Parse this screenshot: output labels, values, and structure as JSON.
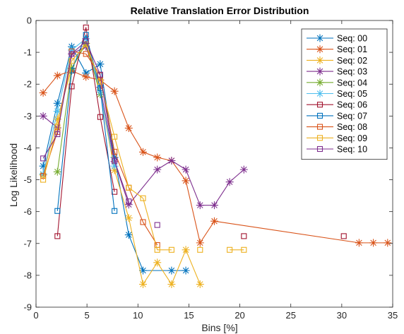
{
  "chart_data": {
    "type": "line",
    "title": "Relative Translation Error Distribution",
    "xlabel": "Bins [%]",
    "ylabel": "Log Likelihood",
    "xlim": [
      0,
      35
    ],
    "ylim": [
      -9,
      0
    ],
    "xticks": [
      0,
      5,
      10,
      15,
      20,
      25,
      30,
      35
    ],
    "yticks": [
      0,
      -1,
      -2,
      -3,
      -4,
      -5,
      -6,
      -7,
      -8,
      -9
    ],
    "grid": false,
    "legend_position": "top-right",
    "series": [
      {
        "name": "Seq: 00",
        "color": "#0072BD",
        "marker": "asterisk",
        "points": [
          [
            0.7,
            -4.57
          ],
          [
            2.1,
            -2.6
          ],
          [
            3.5,
            -0.82
          ],
          [
            4.9,
            -1.65
          ],
          [
            6.3,
            -1.37
          ],
          [
            7.7,
            -4.3
          ],
          [
            9.1,
            -6.73
          ],
          [
            10.5,
            -7.85
          ],
          [
            13.3,
            -7.85
          ],
          [
            14.7,
            -7.85
          ]
        ]
      },
      {
        "name": "Seq: 01",
        "color": "#D95319",
        "marker": "asterisk",
        "points": [
          [
            0.7,
            -2.27
          ],
          [
            2.1,
            -1.73
          ],
          [
            3.5,
            -1.58
          ],
          [
            4.9,
            -1.77
          ],
          [
            6.3,
            -1.87
          ],
          [
            7.7,
            -2.22
          ],
          [
            9.1,
            -3.38
          ],
          [
            10.5,
            -4.13
          ],
          [
            11.9,
            -4.3
          ],
          [
            13.3,
            -4.4
          ],
          [
            14.7,
            -5.03
          ],
          [
            16.1,
            -6.98
          ],
          [
            17.5,
            -6.3
          ],
          [
            31.7,
            -6.98
          ],
          [
            33.1,
            -6.98
          ],
          [
            34.5,
            -6.98
          ]
        ]
      },
      {
        "name": "Seq: 02",
        "color": "#EDB120",
        "marker": "asterisk",
        "points": [
          [
            0.7,
            -4.85
          ],
          [
            2.1,
            -3.1
          ],
          [
            3.5,
            -1.5
          ],
          [
            4.9,
            -0.72
          ],
          [
            6.3,
            -2.25
          ],
          [
            7.7,
            -4.7
          ],
          [
            9.1,
            -6.2
          ],
          [
            10.5,
            -8.28
          ],
          [
            11.9,
            -7.6
          ],
          [
            13.3,
            -8.28
          ],
          [
            14.7,
            -7.2
          ],
          [
            16.1,
            -8.28
          ]
        ]
      },
      {
        "name": "Seq: 03",
        "color": "#7E2F8E",
        "marker": "asterisk",
        "points": [
          [
            0.7,
            -3.0
          ],
          [
            2.1,
            -3.37
          ],
          [
            3.5,
            -1.05
          ],
          [
            4.9,
            -0.82
          ],
          [
            6.3,
            -2.1
          ],
          [
            7.7,
            -4.43
          ],
          [
            9.1,
            -5.78
          ],
          [
            11.9,
            -4.68
          ],
          [
            13.3,
            -4.4
          ],
          [
            14.7,
            -4.68
          ],
          [
            16.1,
            -5.8
          ],
          [
            17.5,
            -5.8
          ],
          [
            19.0,
            -5.07
          ],
          [
            20.4,
            -4.68
          ]
        ]
      },
      {
        "name": "Seq: 04",
        "color": "#77AC30",
        "marker": "asterisk",
        "points": [
          [
            2.1,
            -4.75
          ],
          [
            3.5,
            -1.5
          ],
          [
            4.9,
            -0.72
          ],
          [
            6.3,
            -2.32
          ]
        ]
      },
      {
        "name": "Seq: 05",
        "color": "#4DBEEE",
        "marker": "asterisk",
        "points": [
          [
            0.7,
            -4.82
          ],
          [
            2.1,
            -2.85
          ],
          [
            3.5,
            -0.93
          ],
          [
            4.9,
            -0.57
          ],
          [
            6.3,
            -2.25
          ],
          [
            7.7,
            -4.57
          ]
        ]
      },
      {
        "name": "Seq: 06",
        "color": "#A2142F",
        "marker": "square",
        "points": [
          [
            2.1,
            -6.77
          ],
          [
            3.5,
            -2.07
          ],
          [
            4.9,
            -0.22
          ],
          [
            6.3,
            -3.03
          ],
          [
            7.7,
            -5.38
          ]
        ],
        "extra_points": [
          [
            20.4,
            -6.77
          ],
          [
            30.2,
            -6.77
          ]
        ]
      },
      {
        "name": "Seq: 07",
        "color": "#0072BD",
        "marker": "square",
        "points": [
          [
            2.1,
            -5.98
          ],
          [
            3.5,
            -1.57
          ],
          [
            4.9,
            -0.45
          ],
          [
            6.3,
            -2.13
          ],
          [
            7.7,
            -5.98
          ]
        ]
      },
      {
        "name": "Seq: 08",
        "color": "#D95319",
        "marker": "square",
        "points": [
          [
            0.7,
            -4.88
          ],
          [
            2.1,
            -3.5
          ],
          [
            3.5,
            -0.97
          ],
          [
            4.9,
            -1.05
          ],
          [
            6.3,
            -1.72
          ],
          [
            7.7,
            -4.12
          ],
          [
            9.1,
            -5.25
          ],
          [
            10.5,
            -6.33
          ],
          [
            11.9,
            -7.05
          ]
        ]
      },
      {
        "name": "Seq: 09",
        "color": "#EDB120",
        "marker": "square",
        "points": [
          [
            0.7,
            -5.0
          ],
          [
            2.1,
            -3.33
          ],
          [
            3.5,
            -1.27
          ],
          [
            4.9,
            -0.75
          ],
          [
            6.3,
            -1.92
          ],
          [
            7.7,
            -3.65
          ],
          [
            9.1,
            -5.25
          ],
          [
            10.5,
            -5.58
          ],
          [
            11.9,
            -7.2
          ],
          [
            13.3,
            -7.2
          ]
        ],
        "extra_segments": [
          [
            [
              16.1,
              -7.2
            ]
          ],
          [
            [
              19.0,
              -7.2
            ],
            [
              20.4,
              -7.2
            ]
          ]
        ]
      },
      {
        "name": "Seq: 10",
        "color": "#7E2F8E",
        "marker": "square",
        "points": [
          [
            0.7,
            -4.33
          ],
          [
            2.1,
            -3.57
          ],
          [
            3.5,
            -1.05
          ],
          [
            4.9,
            -0.65
          ],
          [
            6.3,
            -1.7
          ],
          [
            7.7,
            -4.4
          ],
          [
            9.1,
            -5.68
          ]
        ],
        "extra_points": [
          [
            11.9,
            -6.42
          ]
        ]
      }
    ]
  }
}
